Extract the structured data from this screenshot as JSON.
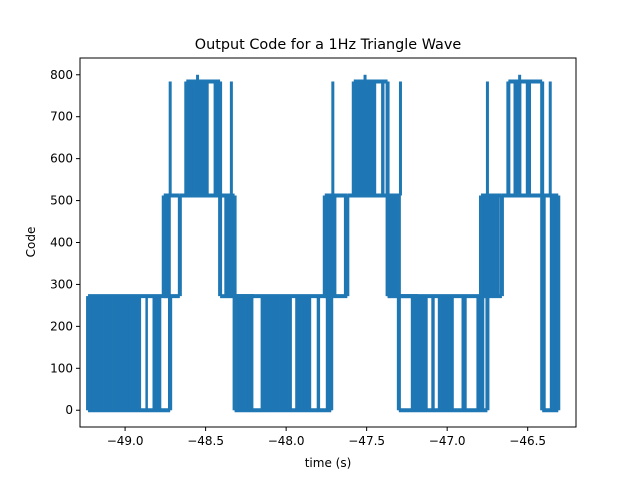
{
  "chart_data": {
    "type": "line",
    "title": "Output Code for a 1Hz Triangle Wave",
    "xlabel": "time (s)",
    "ylabel": "Code",
    "xlim": [
      -49.28,
      -46.2
    ],
    "ylim": [
      -40,
      840
    ],
    "xticks": [
      -49.0,
      -48.5,
      -48.0,
      -47.5,
      -47.0,
      -46.5
    ],
    "xtick_labels": [
      "−49.0",
      "−48.5",
      "−48.0",
      "−47.5",
      "−47.0",
      "−46.5"
    ],
    "yticks": [
      0,
      100,
      200,
      300,
      400,
      500,
      600,
      700,
      800
    ],
    "ytick_labels": [
      "0",
      "100",
      "200",
      "300",
      "400",
      "500",
      "600",
      "700",
      "800"
    ],
    "grid": false,
    "legend": "none",
    "series_color": "#1f77b4",
    "code_levels": [
      0,
      272,
      512,
      784,
      800
    ],
    "regions": [
      {
        "x0": -49.23,
        "x1": -48.72,
        "low": 0,
        "high": 272
      },
      {
        "x0": -48.76,
        "x1": -48.66,
        "low": 272,
        "high": 512
      },
      {
        "x0": -48.62,
        "x1": -48.41,
        "low": 512,
        "high": 784
      },
      {
        "x0": -48.41,
        "x1": -48.32,
        "low": 272,
        "high": 512
      },
      {
        "x0": -48.32,
        "x1": -47.72,
        "low": 0,
        "high": 272
      },
      {
        "x0": -47.76,
        "x1": -47.62,
        "low": 272,
        "high": 512
      },
      {
        "x0": -47.58,
        "x1": -47.37,
        "low": 512,
        "high": 784
      },
      {
        "x0": -47.37,
        "x1": -47.3,
        "low": 272,
        "high": 512
      },
      {
        "x0": -47.3,
        "x1": -46.75,
        "low": 0,
        "high": 272
      },
      {
        "x0": -46.79,
        "x1": -46.66,
        "low": 272,
        "high": 512
      },
      {
        "x0": -46.62,
        "x1": -46.41,
        "low": 512,
        "high": 784
      },
      {
        "x0": -46.41,
        "x1": -46.31,
        "low": 0,
        "high": 512
      }
    ],
    "spikes": [
      {
        "x": -48.72,
        "low": 512,
        "high": 784
      },
      {
        "x": -48.55,
        "low": 784,
        "high": 800
      },
      {
        "x": -48.34,
        "low": 512,
        "high": 784
      },
      {
        "x": -47.71,
        "low": 512,
        "high": 784
      },
      {
        "x": -47.51,
        "low": 784,
        "high": 800
      },
      {
        "x": -47.29,
        "low": 512,
        "high": 784
      },
      {
        "x": -46.75,
        "low": 512,
        "high": 784
      },
      {
        "x": -46.55,
        "low": 784,
        "high": 800
      },
      {
        "x": -46.36,
        "low": 512,
        "high": 784
      }
    ]
  }
}
